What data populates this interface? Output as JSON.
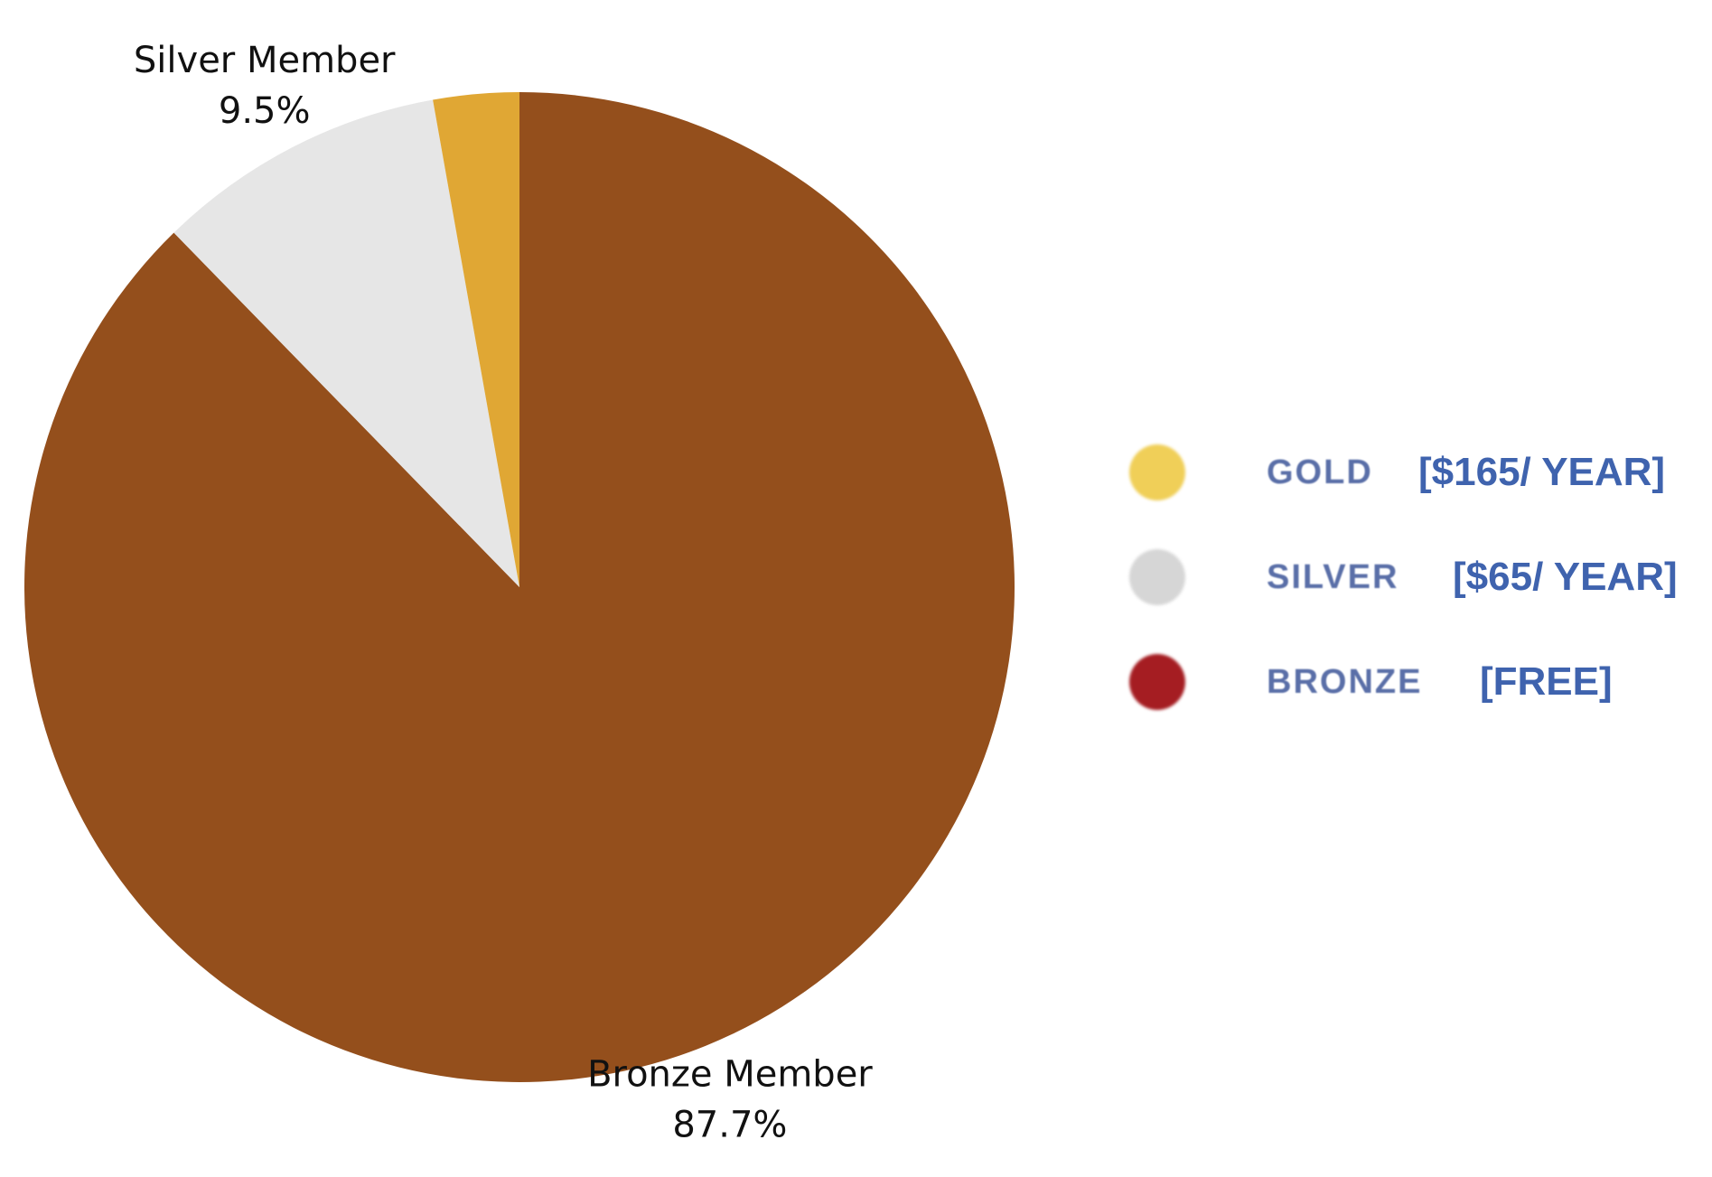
{
  "chart_data": {
    "type": "pie",
    "title": "",
    "start_angle_deg": 0,
    "direction": "clockwise",
    "slices": [
      {
        "name": "Bronze Member",
        "value": 87.7,
        "color": "#944f1c",
        "label_name": "Bronze Member",
        "label_pct": "87.7%"
      },
      {
        "name": "Silver Member",
        "value": 9.5,
        "color": "#e6e6e6",
        "label_name": "Silver Member",
        "label_pct": "9.5%"
      },
      {
        "name": "Gold Member",
        "value": 2.8,
        "color": "#e0a734",
        "label_name": "",
        "label_pct": ""
      }
    ]
  },
  "legend": {
    "items": [
      {
        "tier": "GOLD",
        "price": "[$165/ YEAR]",
        "color": "#f0cf58"
      },
      {
        "tier": "SILVER",
        "price": "[$65/ YEAR]",
        "color": "#d6d6d6"
      },
      {
        "tier": "BRONZE",
        "price": "[FREE]",
        "color": "#a51d22"
      }
    ]
  }
}
